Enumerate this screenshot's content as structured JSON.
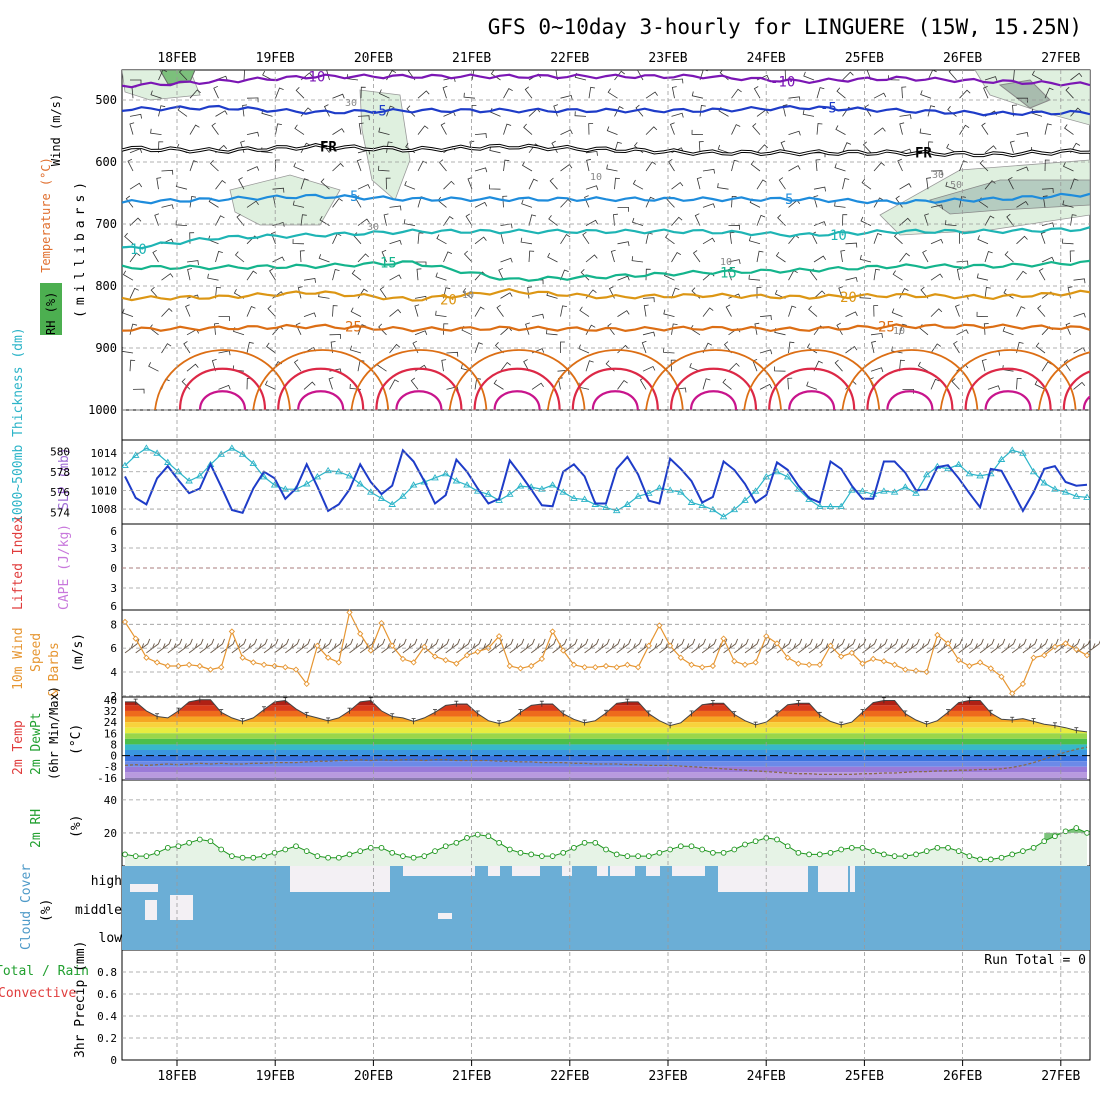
{
  "title": "GFS 0~10day 3-hourly for LINGUERE (15W, 15.25N)",
  "dates": [
    "18FEB",
    "19FEB",
    "20FEB",
    "21FEB",
    "22FEB",
    "23FEB",
    "24FEB",
    "25FEB",
    "26FEB",
    "27FEB"
  ],
  "colors": {
    "temp_m10": "#7b16b4",
    "temp_m5": "#1e3cc8",
    "temp_fr": "#000000",
    "temp_5": "#1e8cdc",
    "temp_10": "#1eb4b4",
    "temp_15": "#14b48c",
    "temp_20": "#dc9614",
    "temp_25": "#dc6e14",
    "temp_30": "#dc2846",
    "temp_35": "#c8148c",
    "slp": "#1e3cc8",
    "thickness": "#2cb4c8",
    "wind10": "#e69632",
    "rh2m": "#1e961e",
    "cloud": "#6baed6",
    "dashed_ref": "#dc2828"
  },
  "chart_data": [
    {
      "type": "contour",
      "panel": "upper-air",
      "ylabels": [
        "Wind (m/s)",
        "Temperature (°C)",
        "RH (%)",
        "(millibars)"
      ],
      "y_ticks": [
        500,
        600,
        700,
        800,
        900,
        1000
      ],
      "temperature_labels": [
        "-10",
        "-5",
        "FR",
        "5",
        "10",
        "15",
        "20",
        "25"
      ],
      "rh_labels": [
        "10",
        "30",
        "50"
      ],
      "series": [
        {
          "name": "-10",
          "x": [
            0,
            1,
            2,
            3,
            4,
            5,
            6,
            7,
            8,
            9,
            10
          ],
          "values": [
            477,
            470,
            462,
            462,
            462,
            462,
            462,
            470,
            465,
            470,
            475
          ]
        },
        {
          "name": "-5",
          "x": [
            0,
            1,
            2,
            3,
            4,
            5,
            6,
            7,
            8,
            9,
            10
          ],
          "values": [
            515,
            512,
            520,
            517,
            517,
            517,
            517,
            512,
            517,
            522,
            520
          ]
        },
        {
          "name": "FR",
          "x": [
            0,
            1,
            2,
            3,
            4,
            5,
            6,
            7,
            8,
            9,
            10
          ],
          "values": [
            578,
            582,
            575,
            580,
            575,
            580,
            585,
            585,
            585,
            588,
            582
          ]
        },
        {
          "name": "5",
          "x": [
            0,
            1,
            2,
            3,
            4,
            5,
            6,
            7,
            8,
            9,
            10
          ],
          "values": [
            665,
            660,
            655,
            660,
            660,
            660,
            660,
            660,
            665,
            660,
            652
          ]
        },
        {
          "name": "10",
          "x": [
            0,
            1,
            2,
            3,
            4,
            5,
            6,
            7,
            8,
            9,
            10
          ],
          "values": [
            740,
            722,
            718,
            712,
            712,
            712,
            712,
            718,
            712,
            712,
            708
          ]
        },
        {
          "name": "15",
          "x": [
            0,
            1,
            2,
            3,
            4,
            5,
            6,
            7,
            8,
            9,
            10
          ],
          "values": [
            770,
            770,
            768,
            762,
            790,
            785,
            778,
            775,
            768,
            768,
            762
          ]
        },
        {
          "name": "20",
          "x": [
            0,
            1,
            2,
            3,
            4,
            5,
            6,
            7,
            8,
            9,
            10
          ],
          "values": [
            820,
            818,
            810,
            822,
            808,
            818,
            815,
            818,
            815,
            818,
            810
          ]
        },
        {
          "name": "25",
          "x": [
            0,
            1,
            2,
            3,
            4,
            5,
            6,
            7,
            8,
            9,
            10
          ],
          "values": [
            870,
            868,
            865,
            870,
            868,
            870,
            868,
            870,
            865,
            865,
            868
          ]
        }
      ]
    },
    {
      "type": "line",
      "panel": "slp-thickness",
      "ylabel_left": "1000~500mb Thickness (dm)",
      "ylabel_right": "SLP (mb)",
      "left_ticks": [
        574,
        576,
        578,
        580
      ],
      "right_ticks": [
        1008,
        1010,
        1012,
        1014
      ],
      "ylim_slp": [
        1006.4,
        1015.4
      ],
      "ylim_thickness": [
        572.9,
        581.1
      ],
      "x_step_days": 0.125,
      "series": [
        {
          "name": "SLP",
          "values": [
            1011.5,
            1009.2,
            1008.5,
            1011.3,
            1012.6,
            1011.1,
            1009.7,
            1010.2,
            1012.8,
            1010.4,
            1007.9,
            1007.6,
            1010.2,
            1012.0,
            1011.3,
            1009.1,
            1010.2,
            1012.8,
            1010.4,
            1007.8,
            1008.5,
            1010.1,
            1012.8,
            1010.9,
            1009.6,
            1010.5,
            1014.3,
            1013.1,
            1011.0,
            1008.6,
            1009.5,
            1013.3,
            1012.0,
            1010.2,
            1008.6,
            1009.1,
            1013.2,
            1011.7,
            1010.1,
            1008.4,
            1008.3,
            1012.0,
            1012.8,
            1011.5,
            1008.6,
            1008.6,
            1012.3,
            1013.6,
            1011.7,
            1008.9,
            1008.6,
            1013.4,
            1012.3,
            1011.0,
            1008.7,
            1009.3,
            1013.1,
            1012.2,
            1010.7,
            1008.7,
            1009.5,
            1013.0,
            1012.2,
            1010.5,
            1009.2,
            1008.7,
            1013.1,
            1012.3,
            1010.5,
            1009.1,
            1009.1,
            1013.1,
            1013.1,
            1011.9,
            1010.0,
            1010.1,
            1012.5,
            1012.7,
            1011.3,
            1009.7,
            1008.2,
            1012.3,
            1012.1,
            1010.0,
            1007.8,
            1009.8,
            1012.3,
            1012.6,
            1010.9,
            1010.5,
            1010.6
          ]
        },
        {
          "name": "Thickness",
          "values": [
            578.6,
            579.6,
            580.3,
            579.8,
            578.9,
            578.0,
            577.1,
            577.6,
            578.7,
            579.7,
            580.3,
            579.7,
            578.8,
            577.5,
            576.7,
            576.3,
            576.3,
            576.8,
            577.5,
            578.1,
            578.0,
            577.6,
            576.8,
            576.0,
            575.4,
            574.8,
            575.6,
            576.7,
            577.0,
            577.4,
            577.8,
            577.1,
            576.7,
            576.1,
            575.8,
            575.2,
            575.8,
            576.6,
            576.5,
            576.3,
            576.7,
            576.0,
            575.4,
            575.3,
            574.8,
            574.5,
            574.2,
            574.8,
            575.6,
            575.9,
            576.4,
            576.2,
            576.0,
            575.0,
            574.7,
            574.3,
            573.6,
            574.3,
            575.2,
            576.1,
            577.5,
            578.0,
            577.5,
            576.3,
            575.3,
            574.6,
            574.6,
            574.6,
            576.2,
            576.1,
            575.8,
            576.1,
            576.0,
            576.5,
            575.9,
            577.7,
            578.5,
            578.3,
            578.7,
            577.8,
            577.6,
            577.8,
            579.2,
            580.1,
            579.8,
            578.0,
            576.9,
            576.3,
            576.0,
            575.6,
            575.5
          ]
        }
      ]
    },
    {
      "type": "line",
      "panel": "stability",
      "ylabel": "Lifted Index",
      "ylabel2": "CAPE (J/kg)",
      "ticks": [
        "6",
        "3",
        "0",
        "3",
        "6"
      ],
      "series": [
        {
          "name": "Lifted Index",
          "values": []
        }
      ]
    },
    {
      "type": "line",
      "panel": "wind10m",
      "ylabel": "10m Wind Speed & Barbs",
      "unit": "(m/s)",
      "ticks": [
        2,
        4,
        6,
        8
      ],
      "ylim": [
        1.9,
        9.2
      ],
      "x_step_days": 0.125,
      "series": [
        {
          "name": "10m Wind",
          "values": [
            8.2,
            6.8,
            5.2,
            4.8,
            4.5,
            4.5,
            4.6,
            4.5,
            4.2,
            4.4,
            7.4,
            5.2,
            4.8,
            4.6,
            4.5,
            4.4,
            4.2,
            3.0,
            6.2,
            5.2,
            4.8,
            9.0,
            7.2,
            5.8,
            8.1,
            6.2,
            5.1,
            4.8,
            6.1,
            5.3,
            5.0,
            4.7,
            5.4,
            5.7,
            6.0,
            7.0,
            4.5,
            4.3,
            4.5,
            5.1,
            7.4,
            5.8,
            4.6,
            4.4,
            4.4,
            4.5,
            4.4,
            4.6,
            4.4,
            6.2,
            7.9,
            6.2,
            5.2,
            4.6,
            4.4,
            4.5,
            6.8,
            4.9,
            4.6,
            4.8,
            7.0,
            6.4,
            5.2,
            4.7,
            4.6,
            4.6,
            6.2,
            5.3,
            5.6,
            4.7,
            5.1,
            4.9,
            4.6,
            4.2,
            4.1,
            4.0,
            7.1,
            6.4,
            5.0,
            4.5,
            4.8,
            4.3,
            3.6,
            2.2,
            3.0,
            5.2,
            5.4,
            6.1,
            6.4,
            5.9,
            5.4
          ]
        }
      ]
    },
    {
      "type": "area",
      "panel": "temperature2m",
      "ylabel": "2m Temp 2m DewPt (6hr Min/Max)",
      "unit": "(°C)",
      "ticks": [
        40,
        32,
        24,
        16,
        8,
        0,
        -8,
        -16
      ],
      "ylim": [
        -17.5,
        42
      ],
      "x_step_days": 0.125,
      "series": [
        {
          "name": "2m Temp",
          "values": [
            38.5,
            38.5,
            32.0,
            28.0,
            27.0,
            32.0,
            38.5,
            40.0,
            40.0,
            31.0,
            27.0,
            24.5,
            27.0,
            33.0,
            38.5,
            39.5,
            33.5,
            29.0,
            27.0,
            25.0,
            27.0,
            32.0,
            38.5,
            39.5,
            32.0,
            28.0,
            27.0,
            24.5,
            27.0,
            31.0,
            36.0,
            37.0,
            37.0,
            30.0,
            25.0,
            23.0,
            25.0,
            31.0,
            36.0,
            37.0,
            37.0,
            30.0,
            26.0,
            23.5,
            25.0,
            30.5,
            37.5,
            38.5,
            38.5,
            30.0,
            25.0,
            21.5,
            23.5,
            30.0,
            36.5,
            37.5,
            37.5,
            29.5,
            25.0,
            22.0,
            24.0,
            30.0,
            36.5,
            37.5,
            37.5,
            29.0,
            24.5,
            22.0,
            24.0,
            31.0,
            38.0,
            39.5,
            39.5,
            30.0,
            25.5,
            22.5,
            25.0,
            31.0,
            38.0,
            39.5,
            39.5,
            30.5,
            26.0,
            25.5,
            26.5,
            24.5,
            22.5,
            21.5,
            20.0,
            18.0,
            17.0
          ]
        },
        {
          "name": "2m DewPt",
          "values": [
            -7.0,
            -6.5,
            -7.0,
            -6.5,
            -6.0,
            -6.5,
            -6.0,
            -5.5,
            -6.0,
            -5.5,
            -6.0,
            -6.0,
            -5.5,
            -5.5,
            -5.0,
            -5.0,
            -5.0,
            -4.5,
            -4.0,
            -4.0,
            -3.5,
            -3.5,
            -3.0,
            -3.5,
            -3.0,
            -3.5,
            -3.0,
            -3.0,
            -3.5,
            -3.0,
            -3.0,
            -3.5,
            -3.5,
            -3.5,
            -3.5,
            -4.0,
            -4.0,
            -4.5,
            -4.5,
            -5.0,
            -5.0,
            -5.0,
            -5.5,
            -5.5,
            -6.0,
            -6.0,
            -6.0,
            -6.5,
            -6.5,
            -7.0,
            -7.0,
            -7.0,
            -7.5,
            -8.0,
            -8.5,
            -9.0,
            -9.5,
            -10.0,
            -10.5,
            -11.0,
            -11.5,
            -12.0,
            -12.5,
            -13.0,
            -13.0,
            -13.5,
            -13.5,
            -13.5,
            -13.5,
            -13.0,
            -13.0,
            -12.5,
            -12.5,
            -12.0,
            -11.5,
            -11.5,
            -11.0,
            -11.0,
            -10.5,
            -10.5,
            -10.0,
            -10.0,
            -9.5,
            -8.5,
            -7.0,
            -5.0,
            -2.5,
            0.0,
            2.5,
            4.5,
            6.0
          ]
        }
      ]
    },
    {
      "type": "line",
      "panel": "rh2m",
      "ylabel": "2m RH",
      "unit": "(%)",
      "ticks": [
        20,
        40
      ],
      "ylim": [
        0,
        52
      ],
      "x_step_days": 0.125,
      "series": [
        {
          "name": "2m RH",
          "values": [
            7,
            6,
            6,
            8,
            11,
            12,
            14,
            16,
            15,
            10,
            6,
            5,
            5,
            6,
            8,
            10,
            12,
            9,
            6,
            5,
            5,
            7,
            9,
            11,
            11,
            8,
            6,
            5,
            6,
            9,
            12,
            14,
            17,
            19,
            18,
            14,
            10,
            8,
            7,
            6,
            6,
            8,
            11,
            14,
            14,
            10,
            7,
            6,
            6,
            6,
            8,
            10,
            12,
            12,
            10,
            8,
            8,
            10,
            13,
            15,
            17,
            16,
            12,
            8,
            7,
            7,
            8,
            10,
            11,
            11,
            9,
            7,
            6,
            6,
            7,
            9,
            11,
            11,
            9,
            6,
            4,
            4,
            5,
            7,
            9,
            11,
            15,
            18,
            21,
            23,
            20
          ]
        }
      ]
    },
    {
      "type": "area",
      "panel": "cloud-cover",
      "ylabel": "Cloud Cover",
      "unit": "(%)",
      "levels": [
        "high",
        "middle",
        "low"
      ]
    },
    {
      "type": "bar",
      "panel": "precip",
      "ylabel1": "Total / Rain",
      "ylabel2": "Convective",
      "ylabel3": "3hr Precip (mm)",
      "ticks": [
        "0",
        "0.2",
        "0.4",
        "0.6",
        "0.8"
      ],
      "ylim": [
        0,
        1.0
      ],
      "run_total": "Run Total = 0",
      "series": [
        {
          "name": "Total / Rain",
          "values": []
        }
      ]
    }
  ]
}
